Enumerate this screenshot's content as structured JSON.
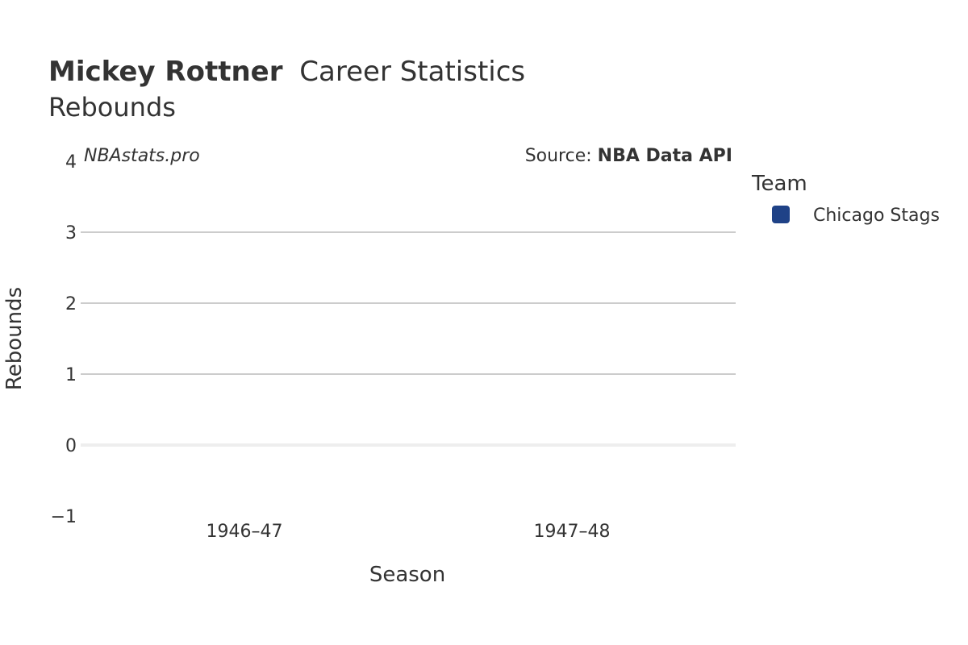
{
  "title": {
    "player": "Mickey Rottner",
    "rest": "Career Statistics"
  },
  "subtitle": "Rebounds",
  "watermark": "NBAstats.pro",
  "source": {
    "prefix": "Source: ",
    "name": "NBA Data API"
  },
  "chart_data": {
    "type": "bar",
    "categories": [
      "1946–47",
      "1947–48"
    ],
    "series": [
      {
        "name": "Chicago Stags",
        "color": "#1f4287",
        "values": [
          0,
          0
        ]
      }
    ],
    "xlabel": "Season",
    "ylabel": "Rebounds",
    "ylim": [
      -1,
      4
    ],
    "yticks": [
      -1,
      0,
      1,
      2,
      3,
      4
    ],
    "ytick_labels": [
      "−1",
      "0",
      "1",
      "2",
      "3",
      "4"
    ],
    "grid": true,
    "legend": {
      "title": "Team",
      "placement": "right"
    }
  },
  "colors": {
    "text": "#333333",
    "grid": "#cccccc",
    "zeroline": "#eeeeee"
  }
}
